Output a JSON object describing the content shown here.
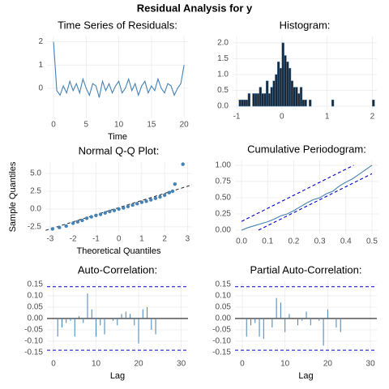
{
  "title": "Residual Analysis for  y",
  "chart_data": [
    {
      "type": "line",
      "title": "Time Series of Residuals:",
      "xlabel": "Time",
      "x": [
        0,
        0.5,
        1,
        1.5,
        2,
        2.5,
        3,
        3.5,
        4,
        4.5,
        5,
        5.5,
        6,
        6.5,
        7,
        7.5,
        8,
        8.5,
        9,
        9.5,
        10,
        10.5,
        11,
        11.5,
        12,
        12.5,
        13,
        13.5,
        14,
        14.5,
        15,
        15.5,
        16,
        16.5,
        17,
        17.5,
        18,
        18.5,
        19,
        19.5,
        20
      ],
      "series": [
        {
          "color": "#4682b4",
          "values": [
            2.0,
            -0.1,
            -0.3,
            0.1,
            -0.2,
            0.3,
            -0.1,
            0.2,
            -0.2,
            0.4,
            0.0,
            -0.3,
            0.2,
            0.1,
            -0.4,
            0.3,
            -0.1,
            0.2,
            -0.2,
            0.1,
            0.3,
            -0.2,
            0.0,
            0.4,
            -0.1,
            0.2,
            -0.3,
            0.1,
            0.3,
            -0.2,
            0.1,
            -0.1,
            0.4,
            0.0,
            -0.2,
            0.2,
            0.1,
            -0.3,
            0.0,
            0.2,
            1.0
          ]
        }
      ],
      "xlim": [
        -1,
        20.6
      ],
      "ylim": [
        -1.26,
        2.23
      ],
      "xticks": [
        0,
        5,
        10,
        15,
        20
      ],
      "yticks": [
        0,
        1,
        2
      ],
      "grid": true
    },
    {
      "type": "histogram",
      "title": "Histogram:",
      "color": "#1c2733",
      "bins": [
        -0.95,
        -0.9,
        -0.85,
        -0.8,
        -0.75,
        -0.7,
        -0.65,
        -0.6,
        -0.55,
        -0.5,
        -0.45,
        -0.4,
        -0.35,
        -0.3,
        -0.25,
        -0.2,
        -0.15,
        -0.1,
        -0.05,
        0,
        0.05,
        0.1,
        0.15,
        0.2,
        0.25,
        0.3,
        0.35,
        0.4,
        0.45,
        0.5,
        0.55,
        0.6,
        0.65,
        1.1,
        1.15,
        2.0,
        2.05
      ],
      "values": [
        0.2,
        0.2,
        0.2,
        0.2,
        0.4,
        0,
        0.4,
        0.4,
        0.4,
        0.6,
        0.4,
        0.4,
        0.8,
        0.4,
        0.6,
        0.8,
        1.0,
        1.4,
        1.2,
        2.0,
        1.6,
        1.4,
        1.2,
        0.8,
        0.6,
        0.6,
        0.4,
        0.6,
        0.2,
        0.2,
        0,
        0.2,
        0,
        0.2,
        0,
        0.2
      ],
      "xlim": [
        -1.09,
        2.1
      ],
      "ylim": [
        -0.1,
        2.2
      ],
      "xticks": [
        -1,
        0,
        1,
        2
      ],
      "yticks": [
        {
          "value": 0,
          "label": "0.0"
        },
        0.5,
        {
          "value": 1,
          "label": "1.0"
        },
        1.5,
        {
          "value": 2,
          "label": "2.0"
        }
      ],
      "grid": true
    },
    {
      "type": "scatter",
      "title": "Normal Q-Q Plot:",
      "xlabel": "Theoretical Quantiles",
      "ylabel": "Sample Quantiles",
      "color": "#4682b4",
      "x": [
        -2.9,
        -2.6,
        -2.3,
        -2.0,
        -1.8,
        -1.6,
        -1.4,
        -1.2,
        -1.0,
        -0.8,
        -0.6,
        -0.4,
        -0.2,
        0,
        0.2,
        0.4,
        0.6,
        0.8,
        1.0,
        1.2,
        1.4,
        1.6,
        1.8,
        2.0,
        2.2,
        2.35,
        2.45,
        2.8
      ],
      "values": [
        -2.8,
        -2.6,
        -2.4,
        -2.0,
        -1.8,
        -1.6,
        -1.3,
        -1.1,
        -0.9,
        -0.75,
        -0.55,
        -0.35,
        -0.2,
        0.0,
        0.15,
        0.35,
        0.55,
        0.75,
        0.95,
        1.1,
        1.3,
        1.5,
        1.7,
        1.95,
        2.3,
        2.5,
        3.5,
        6.3
      ],
      "reference_line": {
        "x": [
          -3.2,
          3.2
        ],
        "values": [
          -3.0,
          3.4
        ]
      },
      "xlim": [
        -3.21,
        3.2
      ],
      "ylim": [
        -3.2,
        6.6
      ],
      "xticks": [
        -3,
        -2,
        -1,
        0,
        1,
        2,
        3
      ],
      "yticks": [
        {
          "value": 5,
          "label": "5.0"
        },
        2.5,
        {
          "value": 0,
          "label": "0.0"
        },
        -2.5
      ],
      "grid": true
    },
    {
      "type": "line",
      "title": "Cumulative Periodogram:",
      "x": [
        0,
        0.025,
        0.05,
        0.075,
        0.1,
        0.125,
        0.15,
        0.175,
        0.2,
        0.225,
        0.25,
        0.275,
        0.3,
        0.325,
        0.35,
        0.375,
        0.4,
        0.425,
        0.45,
        0.475,
        0.5
      ],
      "series": [
        {
          "color": "#4682b4",
          "values": [
            0,
            0.04,
            0.07,
            0.1,
            0.13,
            0.17,
            0.22,
            0.25,
            0.3,
            0.36,
            0.42,
            0.47,
            0.5,
            0.56,
            0.6,
            0.68,
            0.74,
            0.79,
            0.86,
            0.93,
            1.0
          ]
        },
        {
          "color": "#0000cd",
          "dash": true,
          "x": [
            0,
            0.43
          ],
          "values": [
            0.135,
            1.0
          ]
        },
        {
          "color": "#0000cd",
          "dash": true,
          "x": [
            0.065,
            0.5
          ],
          "values": [
            0,
            0.87
          ]
        }
      ],
      "xlim": [
        -0.025,
        0.525
      ],
      "ylim": [
        -0.062,
        1.074
      ],
      "xticks": [
        {
          "value": 0,
          "label": "0.0"
        },
        0.1,
        0.2,
        0.3,
        0.4,
        0.5
      ],
      "yticks": [
        {
          "value": 0,
          "label": "0.00"
        },
        0.25,
        {
          "value": 0.5,
          "label": "0.50"
        },
        0.75,
        {
          "value": 1,
          "label": "1.00"
        }
      ],
      "grid": true
    },
    {
      "type": "bar",
      "title": "Auto-Correlation:",
      "xlabel": "Lag",
      "color": "#4682b4",
      "x": [
        1,
        2,
        3,
        4,
        5,
        6,
        7,
        8,
        9,
        10,
        11,
        12,
        13,
        14,
        15,
        16,
        17,
        18,
        19,
        20,
        21,
        22,
        23,
        24
      ],
      "values": [
        -0.08,
        -0.04,
        -0.02,
        -0.01,
        -0.08,
        0.01,
        -0.02,
        0.11,
        0.04,
        -0.08,
        -0.03,
        -0.07,
        0.0,
        -0.01,
        -0.03,
        0.02,
        0.03,
        0.02,
        -0.03,
        -0.11,
        0.04,
        0.05,
        -0.05,
        -0.07
      ],
      "bounds": [
        0.14,
        -0.14
      ],
      "bounds_color": "#0000cd",
      "xlim": [
        -1.52,
        31.6
      ],
      "ylim": [
        -0.168,
        0.164
      ],
      "xticks": [
        0,
        10,
        20,
        30
      ],
      "yticks": [
        0.15,
        {
          "value": 0.1,
          "label": "0.10"
        },
        0.05,
        {
          "value": 0,
          "label": "0.00"
        },
        -0.05,
        {
          "value": -0.1,
          "label": "-0.10"
        },
        -0.15
      ],
      "grid": true
    },
    {
      "type": "bar",
      "title": "Partial Auto-Correlation:",
      "xlabel": "Lag",
      "color": "#4682b4",
      "x": [
        1,
        2,
        3,
        4,
        5,
        6,
        7,
        8,
        9,
        10,
        11,
        12,
        13,
        14,
        15,
        16,
        17,
        18,
        19,
        20,
        21,
        22,
        23,
        24
      ],
      "values": [
        -0.08,
        -0.03,
        -0.02,
        -0.08,
        -0.09,
        0.0,
        -0.04,
        0.09,
        0.07,
        -0.06,
        0.02,
        0.0,
        -0.03,
        -0.01,
        0.03,
        -0.03,
        0.0,
        -0.01,
        -0.12,
        0.04,
        0.0,
        -0.04,
        -0.06,
        0.0
      ],
      "bounds": [
        0.14,
        -0.14
      ],
      "bounds_color": "#0000cd",
      "xlim": [
        -1.7,
        31.5
      ],
      "ylim": [
        -0.168,
        0.164
      ],
      "xticks": [
        0,
        10,
        20,
        30
      ],
      "yticks": [
        0.15,
        {
          "value": 0.1,
          "label": "0.10"
        },
        0.05,
        {
          "value": 0,
          "label": "0.00"
        },
        -0.05,
        {
          "value": -0.1,
          "label": "-0.10"
        },
        -0.15
      ],
      "grid": true
    }
  ]
}
